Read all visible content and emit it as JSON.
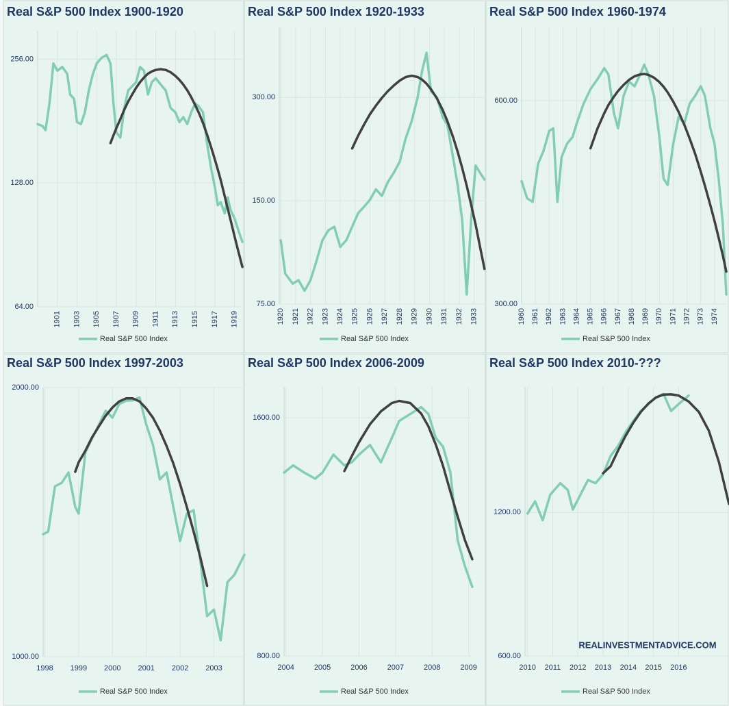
{
  "chart_data": [
    {
      "type": "line",
      "title": "Real S&P 500 Index 1900-1920",
      "log_scale": true,
      "grid": true,
      "legend": "bottom",
      "x": [
        1899.0,
        1899.5,
        1899.8,
        1900.2,
        1900.6,
        1901.0,
        1901.5,
        1902.0,
        1902.3,
        1902.7,
        1903.0,
        1903.4,
        1903.8,
        1904.2,
        1904.6,
        1905.0,
        1905.5,
        1906.0,
        1906.4,
        1906.7,
        1907.0,
        1907.4,
        1907.8,
        1908.2,
        1908.6,
        1909.0,
        1909.4,
        1909.8,
        1910.2,
        1910.6,
        1911.0,
        1911.5,
        1912.0,
        1912.5,
        1913.0,
        1913.4,
        1913.8,
        1914.2,
        1914.6,
        1915.0,
        1915.4,
        1915.8,
        1916.2,
        1916.6,
        1917.0,
        1917.3,
        1917.6,
        1918.0,
        1918.3,
        1918.6,
        1919.0,
        1919.4,
        1919.8
      ],
      "series": [
        {
          "name": "Real S&P 500 Index",
          "color": "#82cdb4",
          "values": [
            178,
            176,
            172,
            200,
            250,
            240,
            245,
            236,
            210,
            205,
            180,
            178,
            190,
            215,
            235,
            250,
            258,
            262,
            250,
            200,
            170,
            165,
            195,
            215,
            220,
            225,
            245,
            240,
            210,
            225,
            230,
            222,
            215,
            195,
            190,
            180,
            185,
            178,
            190,
            200,
            196,
            190,
            160,
            140,
            125,
            113,
            115,
            108,
            118,
            110,
            105,
            98,
            92
          ]
        },
        {
          "color": "#404040",
          "values": [
            null,
            null,
            null,
            null,
            null,
            null,
            null,
            null,
            null,
            null,
            null,
            null,
            null,
            null,
            null,
            null,
            null,
            null,
            160,
            167,
            174,
            183,
            193,
            202,
            210,
            218,
            225,
            231,
            236,
            239,
            241,
            242,
            241,
            238,
            233,
            228,
            222,
            215,
            207,
            198,
            189,
            179,
            168,
            157,
            146,
            138,
            130,
            119,
            111,
            104,
            95,
            87,
            80
          ]
        }
      ],
      "xlim": [
        1899,
        1920
      ],
      "xticks": [
        1901,
        1903,
        1905,
        1907,
        1909,
        1911,
        1913,
        1915,
        1917,
        1919
      ],
      "ylim": [
        64,
        300
      ],
      "yticks": [
        {
          "value": 64,
          "label": "64.00"
        },
        {
          "value": 128,
          "label": "128.00"
        },
        {
          "value": 256,
          "label": "256.00"
        }
      ]
    },
    {
      "type": "line",
      "title": "Real S&P 500 Index 1920-1933",
      "log_scale": true,
      "grid": true,
      "legend": "bottom",
      "x": [
        1920.0,
        1920.3,
        1920.8,
        1921.2,
        1921.6,
        1922.0,
        1922.4,
        1922.8,
        1923.2,
        1923.6,
        1924.0,
        1924.4,
        1924.8,
        1925.2,
        1925.6,
        1926.0,
        1926.4,
        1926.8,
        1927.2,
        1927.6,
        1928.0,
        1928.4,
        1928.8,
        1929.2,
        1929.5,
        1929.8,
        1930.1,
        1930.5,
        1930.9,
        1931.2,
        1931.6,
        1931.9,
        1932.2,
        1932.5,
        1932.8,
        1933.1,
        1933.4,
        1933.7
      ],
      "series": [
        {
          "name": "Real S&P 500 Index",
          "color": "#82cdb4",
          "values": [
            115,
            92,
            86,
            88,
            82,
            88,
            100,
            115,
            123,
            126,
            110,
            115,
            126,
            138,
            144,
            151,
            162,
            155,
            170,
            181,
            195,
            228,
            256,
            300,
            358,
            405,
            313,
            300,
            262,
            250,
            199,
            166,
            132,
            80,
            132,
            190,
            181,
            173
          ]
        },
        {
          "color": "#404040",
          "values": [
            null,
            null,
            null,
            null,
            null,
            null,
            null,
            null,
            null,
            null,
            null,
            null,
            213,
            232,
            250,
            268,
            284,
            299,
            313,
            325,
            336,
            344,
            347,
            344,
            338,
            329,
            317,
            298,
            275,
            256,
            229,
            208,
            187,
            166,
            146,
            128,
            110,
            95
          ]
        }
      ],
      "xlim": [
        1919.9,
        1933.8
      ],
      "xticks": [
        1920,
        1921,
        1922,
        1923,
        1924,
        1925,
        1926,
        1927,
        1928,
        1929,
        1930,
        1931,
        1932,
        1933
      ],
      "ylim": [
        75,
        480
      ],
      "yticks": [
        {
          "value": 75,
          "label": "75.00"
        },
        {
          "value": 150,
          "label": "150.00"
        },
        {
          "value": 300,
          "label": "300.00"
        }
      ]
    },
    {
      "type": "line",
      "title": "Real S&P 500 Index 1960-1974",
      "log_scale": true,
      "grid": true,
      "legend": "bottom",
      "x": [
        1960.0,
        1960.4,
        1960.8,
        1961.2,
        1961.6,
        1962.0,
        1962.3,
        1962.6,
        1962.9,
        1963.3,
        1963.7,
        1964.0,
        1964.5,
        1965.0,
        1965.5,
        1966.0,
        1966.3,
        1966.7,
        1967.0,
        1967.4,
        1967.8,
        1968.2,
        1968.6,
        1968.9,
        1969.2,
        1969.6,
        1970.0,
        1970.3,
        1970.6,
        1971.0,
        1971.4,
        1971.8,
        1972.2,
        1972.6,
        1973.0,
        1973.3,
        1973.7,
        1974.0,
        1974.3,
        1974.6,
        1974.85
      ],
      "series": [
        {
          "name": "Real S&P 500 Index",
          "color": "#82cdb4",
          "values": [
            456,
            430,
            425,
            484,
            506,
            541,
            546,
            425,
            495,
            518,
            530,
            555,
            594,
            624,
            645,
            670,
            656,
            575,
            546,
            610,
            640,
            630,
            656,
            678,
            656,
            610,
            530,
            460,
            450,
            518,
            568,
            555,
            594,
            610,
            630,
            610,
            546,
            518,
            460,
            394,
            310
          ]
        },
        {
          "color": "#404040",
          "values": [
            null,
            null,
            null,
            null,
            null,
            null,
            null,
            null,
            null,
            null,
            null,
            null,
            null,
            510,
            545,
            575,
            591,
            608,
            620,
            633,
            644,
            652,
            656,
            657,
            655,
            649,
            639,
            629,
            617,
            598,
            577,
            553,
            527,
            500,
            471,
            449,
            420,
            398,
            376,
            354,
            335
          ]
        }
      ],
      "xlim": [
        1960,
        1974.9
      ],
      "xticks": [
        1960,
        1961,
        1962,
        1963,
        1964,
        1965,
        1966,
        1967,
        1968,
        1969,
        1970,
        1971,
        1972,
        1973,
        1974
      ],
      "ylim": [
        300,
        770
      ],
      "yticks": [
        {
          "value": 300,
          "label": "300.00"
        },
        {
          "value": 600,
          "label": "600.00"
        }
      ]
    },
    {
      "type": "line",
      "title": "Real S&P 500 Index 1997-2003",
      "log_scale": true,
      "grid": true,
      "legend": "bottom",
      "x": [
        1997.95,
        1998.1,
        1998.3,
        1998.5,
        1998.7,
        1998.9,
        1999.0,
        1999.2,
        1999.4,
        1999.6,
        1999.8,
        2000.0,
        2000.2,
        2000.4,
        2000.6,
        2000.8,
        2001.0,
        2001.2,
        2001.4,
        2001.6,
        2001.8,
        2002.0,
        2002.2,
        2002.4,
        2002.6,
        2002.8,
        2003.0,
        2003.2,
        2003.4,
        2003.6,
        2003.9
      ],
      "series": [
        {
          "name": "Real S&P 500 Index",
          "color": "#82cdb4",
          "values": [
            1371,
            1380,
            1551,
            1565,
            1607,
            1471,
            1446,
            1694,
            1755,
            1818,
            1884,
            1851,
            1917,
            1933,
            1935,
            1950,
            1818,
            1725,
            1579,
            1607,
            1471,
            1347,
            1446,
            1458,
            1278,
            1110,
            1129,
            1043,
            1212,
            1234,
            1300
          ]
        },
        {
          "color": "#404040",
          "values": [
            null,
            null,
            null,
            null,
            null,
            1610,
            1650,
            1700,
            1760,
            1810,
            1860,
            1900,
            1930,
            1945,
            1945,
            1930,
            1895,
            1850,
            1790,
            1720,
            1645,
            1560,
            1470,
            1380,
            1290,
            1200,
            null,
            null,
            null,
            null,
            null
          ]
        }
      ],
      "xlim": [
        1997.95,
        2003.9
      ],
      "xticks": [
        1998,
        1999,
        2000,
        2001,
        2002,
        2003
      ],
      "ylim": [
        1000,
        2000
      ],
      "yticks": [
        {
          "value": 1000,
          "label": "1000.00"
        },
        {
          "value": 2000,
          "label": "2000.00"
        }
      ]
    },
    {
      "type": "line",
      "title": "Real S&P 500 Index 2006-2009",
      "log_scale": true,
      "grid": true,
      "legend": "bottom",
      "x": [
        2003.95,
        2004.2,
        2004.5,
        2004.8,
        2005.0,
        2005.3,
        2005.6,
        2005.8,
        2006.0,
        2006.3,
        2006.6,
        2006.9,
        2007.1,
        2007.4,
        2007.7,
        2007.9,
        2008.1,
        2008.3,
        2008.5,
        2008.7,
        2008.9,
        2009.1
      ],
      "series": [
        {
          "name": "Real S&P 500 Index",
          "color": "#82cdb4",
          "values": [
            1364,
            1393,
            1364,
            1340,
            1364,
            1437,
            1393,
            1405,
            1437,
            1478,
            1405,
            1509,
            1585,
            1617,
            1650,
            1617,
            1509,
            1470,
            1364,
            1120,
            1038,
            978
          ]
        },
        {
          "color": "#404040",
          "values": [
            null,
            null,
            null,
            null,
            null,
            null,
            1370,
            1430,
            1490,
            1570,
            1630,
            1670,
            1680,
            1670,
            1620,
            1560,
            1480,
            1390,
            1290,
            1200,
            1120,
            1060
          ]
        }
      ],
      "xlim": [
        2003.95,
        2009.1
      ],
      "xticks": [
        2004,
        2005,
        2006,
        2007,
        2008,
        2009
      ],
      "ylim": [
        800,
        1750
      ],
      "yticks": [
        {
          "value": 800,
          "label": "800.00"
        },
        {
          "value": 1600,
          "label": "1600.00"
        }
      ]
    },
    {
      "type": "line",
      "title": "Real S&P 500 Index 2010-???",
      "log_scale": true,
      "grid": true,
      "legend": "bottom",
      "annotation": "REALINVESTMENTADVICE.COM",
      "x": [
        2010.0,
        2010.3,
        2010.6,
        2010.9,
        2011.3,
        2011.6,
        2011.8,
        2012.1,
        2012.4,
        2012.7,
        2013.0,
        2013.3,
        2013.6,
        2013.9,
        2014.2,
        2014.5,
        2014.8,
        2015.1,
        2015.4,
        2015.7,
        2016.0,
        2016.4,
        2016.8,
        2017.2,
        2017.6,
        2018.0
      ],
      "series": [
        {
          "name": "Real S&P 500 Index",
          "color": "#82cdb4",
          "values": [
            1194,
            1266,
            1156,
            1307,
            1382,
            1337,
            1217,
            1307,
            1404,
            1382,
            1442,
            1577,
            1655,
            1770,
            1866,
            1958,
            2025,
            2093,
            2127,
            1958,
            2025,
            2110,
            null,
            null,
            null,
            null
          ]
        },
        {
          "color": "#404040",
          "values": [
            null,
            null,
            null,
            null,
            null,
            null,
            null,
            null,
            null,
            null,
            1450,
            1500,
            1620,
            1740,
            1850,
            1950,
            2030,
            2090,
            2120,
            2122,
            2110,
            2050,
            1950,
            1780,
            1530,
            1250
          ]
        }
      ],
      "xlim": [
        2009.9,
        2018
      ],
      "xticks": [
        2010,
        2011,
        2012,
        2013,
        2014,
        2015,
        2016
      ],
      "ylim": [
        600,
        2200
      ],
      "yticks": [
        {
          "value": 600,
          "label": "600.00"
        },
        {
          "value": 1200,
          "label": "1200.00"
        }
      ]
    }
  ]
}
